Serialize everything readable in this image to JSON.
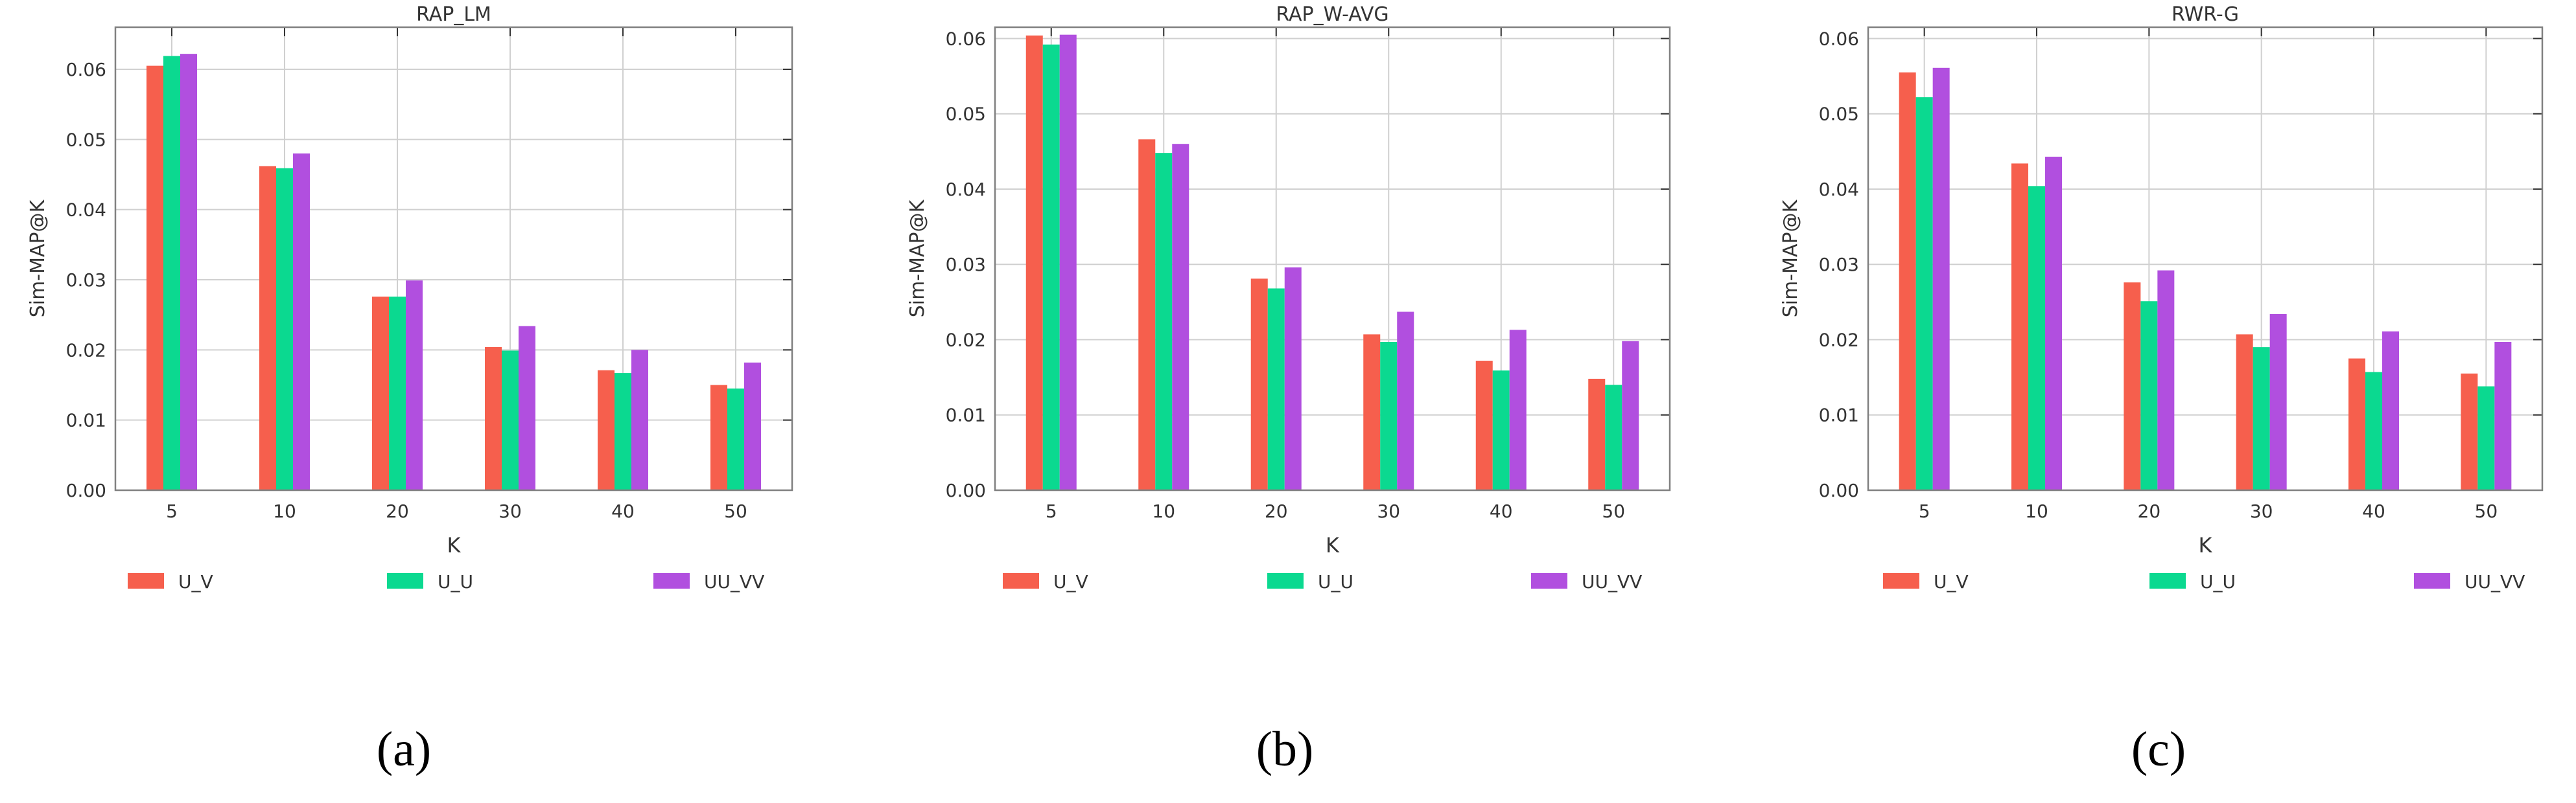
{
  "colors": {
    "series": [
      "#F65F4D",
      "#0BD990",
      "#B14FDF"
    ],
    "grid": "#d0d0d0",
    "axis": "#808080",
    "text": "#333333",
    "caption": "#000000"
  },
  "chart_data": [
    {
      "type": "bar",
      "title": "RAP_LM",
      "xlabel": "K",
      "ylabel": "Sim-MAP@K",
      "categories": [
        "5",
        "10",
        "20",
        "30",
        "40",
        "50"
      ],
      "ylim": [
        0,
        0.066
      ],
      "yticks": [
        "0.00",
        "0.01",
        "0.02",
        "0.03",
        "0.04",
        "0.05",
        "0.06"
      ],
      "grid": true,
      "legend_position": "bottom",
      "caption": "(a)",
      "series": [
        {
          "name": "U_V",
          "values": [
            0.0605,
            0.0462,
            0.0276,
            0.0204,
            0.0171,
            0.015
          ]
        },
        {
          "name": "U_U",
          "values": [
            0.0619,
            0.0459,
            0.0276,
            0.0199,
            0.0167,
            0.0145
          ]
        },
        {
          "name": "UU_VV",
          "values": [
            0.0622,
            0.048,
            0.0299,
            0.0234,
            0.02,
            0.0182
          ]
        }
      ]
    },
    {
      "type": "bar",
      "title": "RAP_W-AVG",
      "xlabel": "K",
      "ylabel": "Sim-MAP@K",
      "categories": [
        "5",
        "10",
        "20",
        "30",
        "40",
        "50"
      ],
      "ylim": [
        0,
        0.0615
      ],
      "yticks": [
        "0.00",
        "0.01",
        "0.02",
        "0.03",
        "0.04",
        "0.05",
        "0.06"
      ],
      "grid": true,
      "legend_position": "bottom",
      "caption": "(b)",
      "series": [
        {
          "name": "U_V",
          "values": [
            0.0604,
            0.0466,
            0.0281,
            0.0207,
            0.0172,
            0.0148
          ]
        },
        {
          "name": "U_U",
          "values": [
            0.0592,
            0.0448,
            0.0268,
            0.0197,
            0.0159,
            0.014
          ]
        },
        {
          "name": "UU_VV",
          "values": [
            0.0605,
            0.046,
            0.0296,
            0.0237,
            0.0213,
            0.0198
          ]
        }
      ]
    },
    {
      "type": "bar",
      "title": "RWR-G",
      "xlabel": "K",
      "ylabel": "Sim-MAP@K",
      "categories": [
        "5",
        "10",
        "20",
        "30",
        "40",
        "50"
      ],
      "ylim": [
        0,
        0.0615
      ],
      "yticks": [
        "0.00",
        "0.01",
        "0.02",
        "0.03",
        "0.04",
        "0.05",
        "0.06"
      ],
      "grid": true,
      "legend_position": "bottom",
      "caption": "(c)",
      "series": [
        {
          "name": "U_V",
          "values": [
            0.0555,
            0.0434,
            0.0276,
            0.0207,
            0.0175,
            0.0155
          ]
        },
        {
          "name": "U_U",
          "values": [
            0.0522,
            0.0404,
            0.0251,
            0.019,
            0.0157,
            0.0138
          ]
        },
        {
          "name": "UU_VV",
          "values": [
            0.0561,
            0.0443,
            0.0292,
            0.0234,
            0.0211,
            0.0197
          ]
        }
      ]
    }
  ]
}
